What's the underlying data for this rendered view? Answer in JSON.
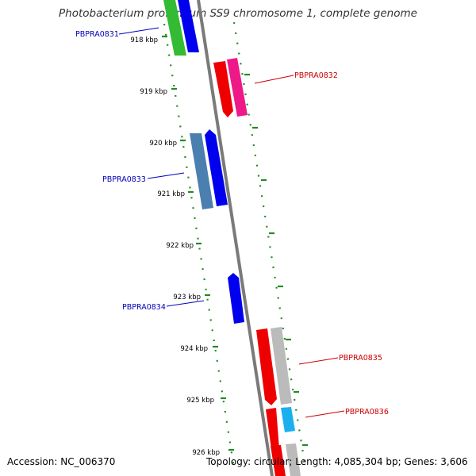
{
  "title": "Photobacterium profundum SS9 chromosome 1, complete genome",
  "footer": {
    "accession": "Accession: NC_006370",
    "summary": "Topology: circular; Length: 4,085,304 bp; Genes: 3,606"
  },
  "colors": {
    "forward_label": "#cc0000",
    "reverse_label": "#0000bb",
    "ruler_ticks": "#228b22",
    "backbone": "#808080"
  },
  "scale_labels": [
    "918 kbp",
    "919 kbp",
    "920 kbp",
    "921 kbp",
    "922 kbp",
    "923 kbp",
    "924 kbp",
    "925 kbp",
    "926 kbp"
  ],
  "gene_labels": [
    {
      "text": "PBPRA0831",
      "strand": "reverse"
    },
    {
      "text": "PBPRA0832",
      "strand": "forward"
    },
    {
      "text": "PBPRA0833",
      "strand": "reverse"
    },
    {
      "text": "PBPRA0834",
      "strand": "reverse"
    },
    {
      "text": "PBPRA0835",
      "strand": "forward"
    },
    {
      "text": "PBPRA0836",
      "strand": "forward"
    }
  ]
}
